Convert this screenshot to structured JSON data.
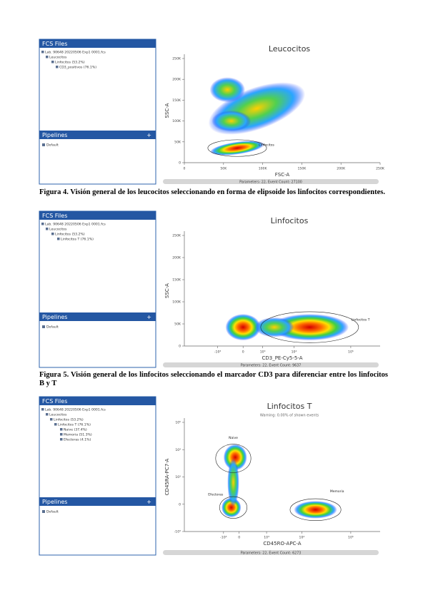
{
  "figures": [
    {
      "sidebar": {
        "header": "FCS Files",
        "tree": [
          "Lab. 90648 20220506 Exp1 0001.fcs",
          "Leucocitos",
          "Linfocitos (53.2%)",
          "CD3_positivos (76.1%)"
        ],
        "pipelines_header": "Pipelines",
        "pipelines_add": "+",
        "pipelines_items": [
          "Default"
        ]
      },
      "plot": {
        "title": "Leucocitos",
        "y_label": "SSC-A",
        "x_label": "FSC-A",
        "yticks": [
          "250K",
          "200K",
          "150K",
          "100K",
          "50K",
          "0"
        ],
        "xticks": [
          "0",
          "50K",
          "100K",
          "150K",
          "200K",
          "250K"
        ],
        "gates": [
          "Linfocitos"
        ],
        "footer": "Parameters: 22, Event Count: 27100"
      },
      "caption": "Figura 4. Visión general de los leucocitos seleccionando en forma de elipsoide los linfocitos correspondientes."
    },
    {
      "sidebar": {
        "header": "FCS Files",
        "tree": [
          "Lab. 90648 20220506 Exp1 0001.fcs",
          "Leucocitos",
          "Linfocitos (53.2%)",
          "Linfocitos T (76.1%)"
        ],
        "pipelines_header": "Pipelines",
        "pipelines_add": "+",
        "pipelines_items": [
          "Default"
        ]
      },
      "plot": {
        "title": "Linfocitos",
        "y_label": "SSC-A",
        "x_label": "CD3_PE-Cy5-5-A",
        "yticks": [
          "250K",
          "200K",
          "150K",
          "100K",
          "50K",
          "0"
        ],
        "xticks": [
          "-10³",
          "0",
          "10³",
          "10⁴",
          "10⁵"
        ],
        "gates": [
          "Linfocitos T"
        ],
        "footer": "Parameters: 22, Event Count: 9637"
      },
      "caption": "Figura 5. Visión general de los linfocitos seleccionando el marcador CD3 para diferenciar entre los linfocitos B y T"
    },
    {
      "sidebar": {
        "header": "FCS Files",
        "tree": [
          "Lab. 90648 20220506 Exp1 0001.fcs",
          "Leucocitos",
          "Linfocitos (53.2%)",
          "Linfocitos T (76.1%)",
          "Naive (37.4%)",
          "Memoria (51.3%)",
          "Efectoras (4.1%)"
        ],
        "pipelines_header": "Pipelines",
        "pipelines_add": "+",
        "pipelines_items": [
          "Default"
        ]
      },
      "plot": {
        "title": "Linfocitos T",
        "subtitle": "Warning: 0.00% of shown events",
        "y_label": "CD45RA-PC7-A",
        "x_label": "CD45RO-APC-A",
        "yticks": [
          "10⁵",
          "10⁴",
          "10³",
          "0",
          "-10³"
        ],
        "xticks": [
          "-10³",
          "0",
          "10³",
          "10⁴",
          "10⁵"
        ],
        "gates": [
          "Naive",
          "Efectoras",
          "Memoria"
        ],
        "footer": "Parameters: 22, Event Count: 6273"
      }
    }
  ]
}
